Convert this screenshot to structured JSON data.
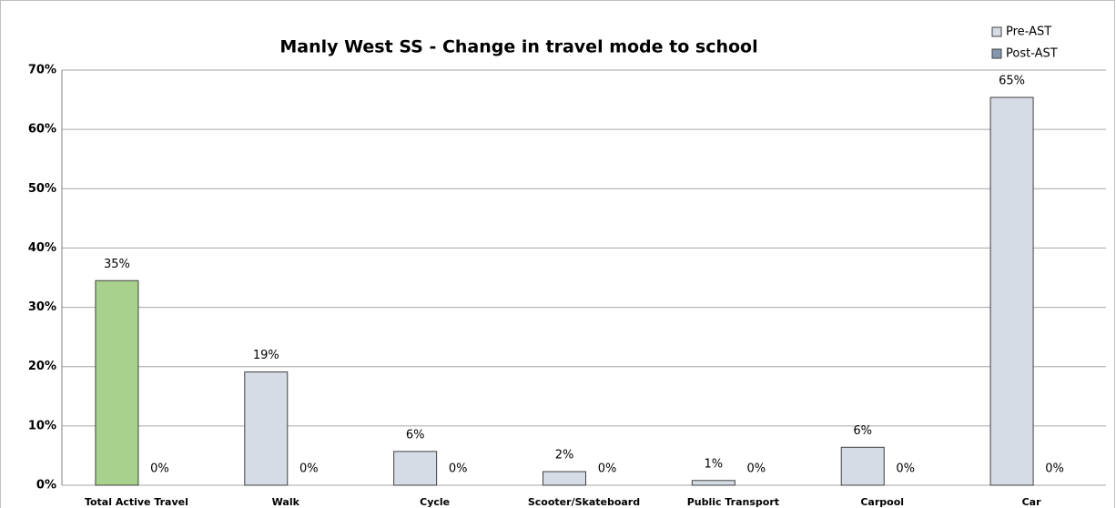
{
  "chart_data": {
    "type": "bar",
    "title": "Manly West SS - Change in travel mode to school",
    "categories": [
      "Total Active Travel",
      "Walk",
      "Cycle",
      "Scooter/Skateboard",
      "Public Transport",
      "Carpool",
      "Car"
    ],
    "series": [
      {
        "name": "Pre-AST",
        "color": "#d6dce5",
        "colors": [
          "#a9d18e",
          "#d6dce5",
          "#d6dce5",
          "#d6dce5",
          "#d6dce5",
          "#d6dce5",
          "#d6dce5"
        ],
        "values": [
          34.5,
          19.1,
          5.7,
          2.3,
          0.8,
          6.4,
          65.4
        ],
        "value_labels": [
          "35%",
          "19%",
          "6%",
          "2%",
          "1%",
          "6%",
          "65%"
        ]
      },
      {
        "name": "Post-AST",
        "color": "#8497b0",
        "values": [
          0,
          0,
          0,
          0,
          0,
          0,
          0
        ],
        "value_labels": [
          "0%",
          "0%",
          "0%",
          "0%",
          "0%",
          "0%",
          "0%"
        ]
      }
    ],
    "ylim": [
      0,
      70
    ],
    "yticks": [
      {
        "value": 0,
        "label": "0%"
      },
      {
        "value": 10,
        "label": "10%"
      },
      {
        "value": 20,
        "label": "20%"
      },
      {
        "value": 30,
        "label": "30%"
      },
      {
        "value": 40,
        "label": "40%"
      },
      {
        "value": 50,
        "label": "50%"
      },
      {
        "value": 60,
        "label": "60%"
      },
      {
        "value": 70,
        "label": "70%"
      }
    ],
    "grid": true,
    "legend": "top-right"
  }
}
